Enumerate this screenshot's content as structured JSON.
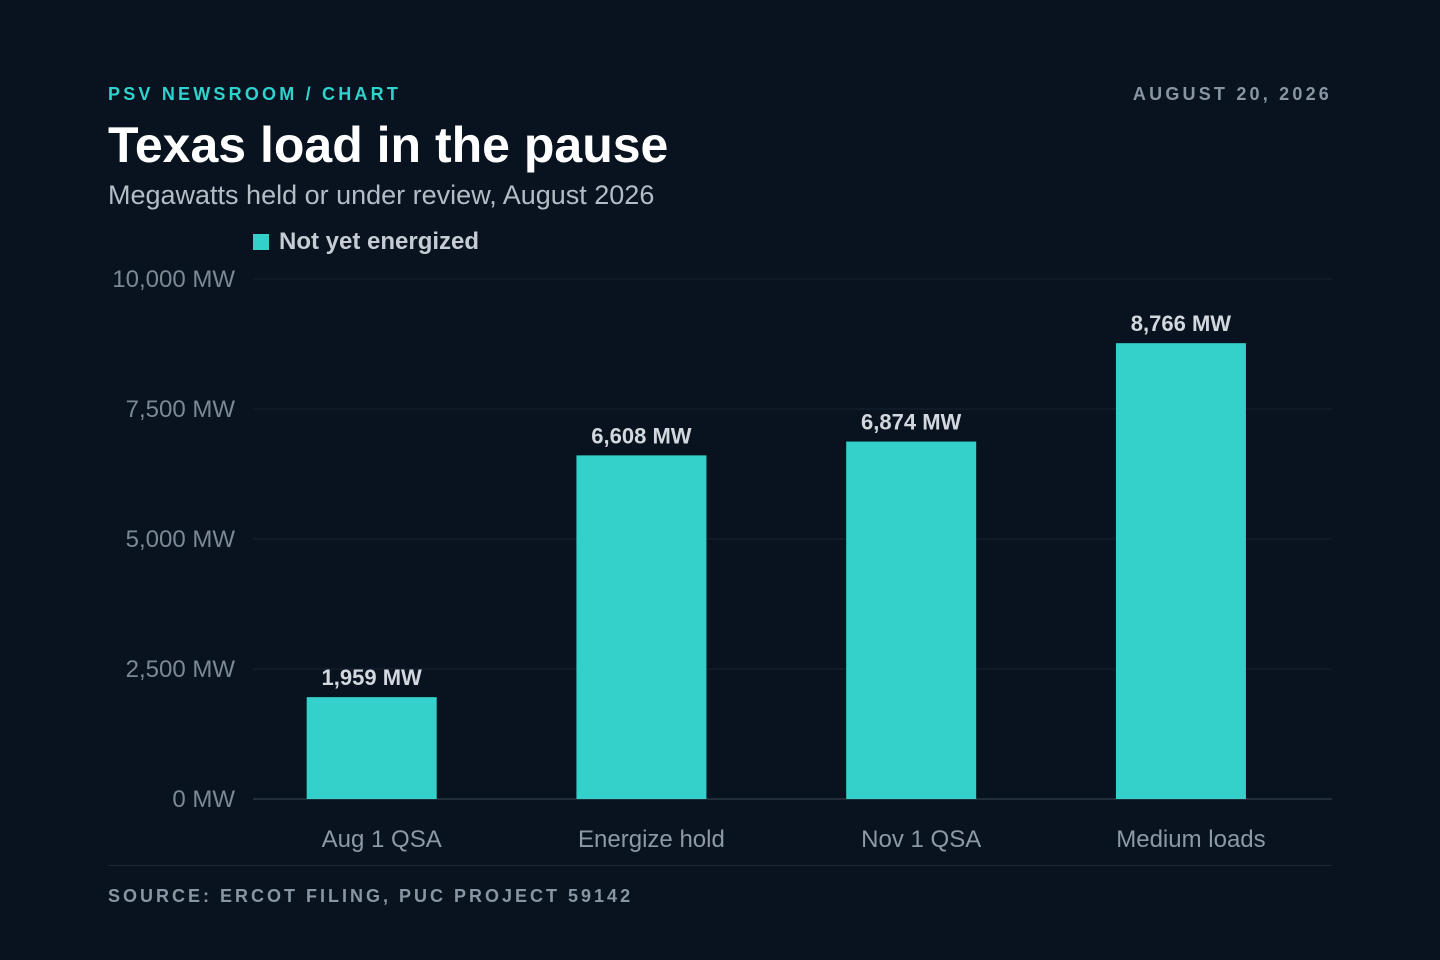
{
  "header": {
    "kicker": "PSV NEWSROOM / CHART",
    "date": "AUGUST 20, 2026",
    "title": "Texas load in the pause",
    "subtitle": "Megawatts held or under review, August 2026"
  },
  "footer": {
    "source": "SOURCE: ERCOT FILING, PUC PROJECT 59142"
  },
  "colors": {
    "background": "#08131f",
    "accent": "#34d1cb",
    "gridline": "#172230"
  },
  "chart_data": {
    "type": "bar",
    "categories": [
      "Aug 1 QSA",
      "Energize hold",
      "Nov 1 QSA",
      "Medium loads"
    ],
    "series": [
      {
        "name": "Not yet energized",
        "values": [
          1959,
          6608,
          6874,
          8766
        ]
      }
    ],
    "data_labels": [
      "1,959 MW",
      "6,608 MW",
      "6,874 MW",
      "8,766 MW"
    ],
    "y_ticks": [
      0,
      2500,
      5000,
      7500,
      10000
    ],
    "y_tick_labels": [
      "0 MW",
      "2,500 MW",
      "5,000 MW",
      "7,500 MW",
      "10,000 MW"
    ],
    "ylim": [
      0,
      10000
    ],
    "grid": true,
    "legend": "top-left"
  }
}
